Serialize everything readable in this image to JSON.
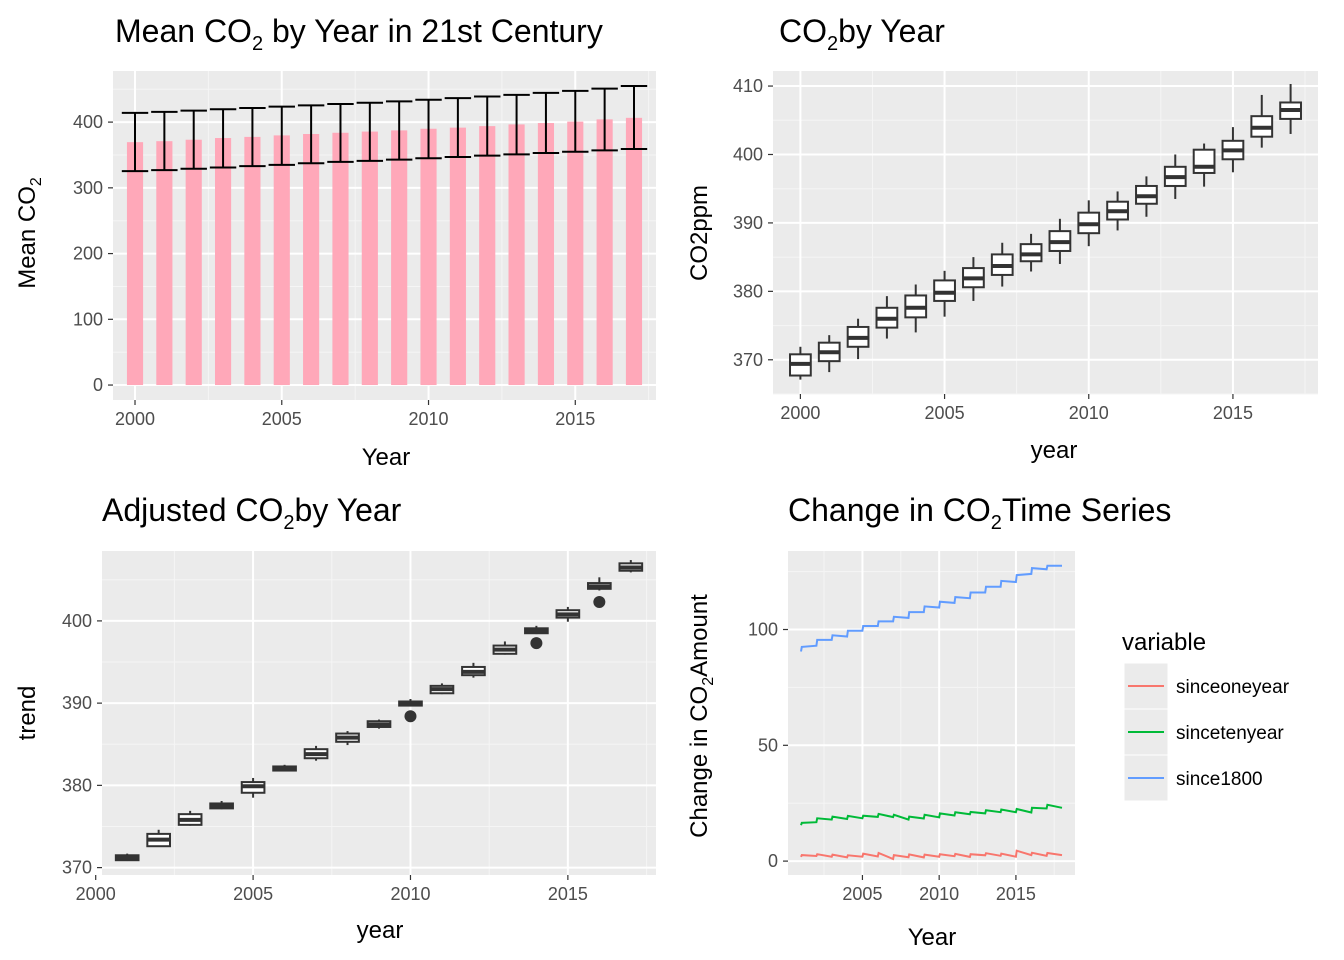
{
  "chart_data": [
    {
      "type": "bar",
      "title": "Mean CO",
      "title_sub": "2",
      "title_rest": " by Year in 21st Century",
      "xlabel": "Year",
      "ylabel": "Mean CO",
      "ylabel_sub": "2",
      "x": [
        2000,
        2001,
        2002,
        2003,
        2004,
        2005,
        2006,
        2007,
        2008,
        2009,
        2010,
        2011,
        2012,
        2013,
        2014,
        2015,
        2016,
        2017
      ],
      "values": [
        369.5,
        371.0,
        373.2,
        375.8,
        377.5,
        379.8,
        381.9,
        383.8,
        385.6,
        387.4,
        389.9,
        391.6,
        393.9,
        396.5,
        398.6,
        400.8,
        404.2,
        406.5
      ],
      "err_low": [
        325.5,
        327.0,
        329.0,
        331.0,
        333.0,
        335.0,
        337.5,
        339.5,
        341.0,
        343.0,
        345.0,
        347.0,
        349.0,
        351.0,
        353.0,
        355.0,
        357.0,
        359.0
      ],
      "err_high": [
        414.0,
        415.5,
        417.5,
        419.5,
        421.5,
        423.5,
        425.5,
        427.5,
        429.5,
        431.5,
        434.0,
        436.5,
        439.0,
        441.5,
        444.5,
        447.5,
        451.0,
        455.0
      ],
      "xticks": [
        2000,
        2005,
        2010,
        2015
      ],
      "yticks": [
        0,
        100,
        200,
        300,
        400
      ],
      "xlim": [
        1999.25,
        2017.75
      ],
      "ylim": [
        -22.75,
        477.75
      ],
      "bar_color": "#ffa8b9",
      "grid": true
    },
    {
      "type": "box",
      "title": "CO",
      "title_sub": "2",
      "title_rest": "by Year",
      "xlabel": "year",
      "ylabel": "CO2ppm",
      "boxes": [
        {
          "x": 2000,
          "lw": 367.1,
          "q1": 367.7,
          "med": 369.4,
          "q3": 370.8,
          "uw": 371.9
        },
        {
          "x": 2001,
          "lw": 368.2,
          "q1": 369.8,
          "med": 371.1,
          "q3": 372.5,
          "uw": 373.6
        },
        {
          "x": 2002,
          "lw": 370.1,
          "q1": 371.9,
          "med": 373.2,
          "q3": 374.8,
          "uw": 376.0
        },
        {
          "x": 2003,
          "lw": 373.1,
          "q1": 374.7,
          "med": 376.0,
          "q3": 377.6,
          "uw": 379.3
        },
        {
          "x": 2004,
          "lw": 374.0,
          "q1": 376.2,
          "med": 377.6,
          "q3": 379.4,
          "uw": 381.0
        },
        {
          "x": 2005,
          "lw": 376.3,
          "q1": 378.6,
          "med": 379.8,
          "q3": 381.6,
          "uw": 383.0
        },
        {
          "x": 2006,
          "lw": 378.6,
          "q1": 380.6,
          "med": 381.9,
          "q3": 383.4,
          "uw": 385.0
        },
        {
          "x": 2007,
          "lw": 380.7,
          "q1": 382.4,
          "med": 383.7,
          "q3": 385.4,
          "uw": 387.1
        },
        {
          "x": 2008,
          "lw": 382.9,
          "q1": 384.4,
          "med": 385.4,
          "q3": 386.9,
          "uw": 388.4
        },
        {
          "x": 2009,
          "lw": 384.0,
          "q1": 385.9,
          "med": 387.2,
          "q3": 388.8,
          "uw": 390.6
        },
        {
          "x": 2010,
          "lw": 386.6,
          "q1": 388.5,
          "med": 389.8,
          "q3": 391.5,
          "uw": 393.3
        },
        {
          "x": 2011,
          "lw": 388.9,
          "q1": 390.5,
          "med": 391.7,
          "q3": 393.1,
          "uw": 394.6
        },
        {
          "x": 2012,
          "lw": 390.9,
          "q1": 392.8,
          "med": 393.9,
          "q3": 395.4,
          "uw": 396.8
        },
        {
          "x": 2013,
          "lw": 393.5,
          "q1": 395.4,
          "med": 396.7,
          "q3": 398.2,
          "uw": 400.0
        },
        {
          "x": 2014,
          "lw": 395.3,
          "q1": 397.3,
          "med": 398.2,
          "q3": 400.7,
          "uw": 401.6
        },
        {
          "x": 2015,
          "lw": 397.4,
          "q1": 399.3,
          "med": 400.6,
          "q3": 402.0,
          "uw": 404.0
        },
        {
          "x": 2016,
          "lw": 401.0,
          "q1": 402.6,
          "med": 403.9,
          "q3": 405.6,
          "uw": 408.7
        },
        {
          "x": 2017,
          "lw": 403.0,
          "q1": 405.2,
          "med": 406.5,
          "q3": 407.6,
          "uw": 410.3
        }
      ],
      "xticks": [
        2000,
        2005,
        2010,
        2015
      ],
      "yticks": [
        370,
        380,
        390,
        400,
        410
      ],
      "xlim": [
        1999.05,
        2017.95
      ],
      "ylim": [
        365.0,
        412.2
      ],
      "grid": true
    },
    {
      "type": "box",
      "title": "Adjusted CO",
      "title_sub": "2",
      "title_rest": "by Year",
      "xlabel": "year",
      "ylabel": "trend",
      "boxes": [
        {
          "x": 2001,
          "lw": 370.8,
          "q1": 370.9,
          "med": 371.2,
          "q3": 371.5,
          "uw": 371.7
        },
        {
          "x": 2002,
          "lw": 372.6,
          "q1": 372.6,
          "med": 373.4,
          "q3": 374.1,
          "uw": 374.6
        },
        {
          "x": 2003,
          "lw": 375.1,
          "q1": 375.2,
          "med": 375.8,
          "q3": 376.5,
          "uw": 376.9
        },
        {
          "x": 2004,
          "lw": 377.1,
          "q1": 377.2,
          "med": 377.5,
          "q3": 377.8,
          "uw": 378.1
        },
        {
          "x": 2005,
          "lw": 378.5,
          "q1": 379.1,
          "med": 379.9,
          "q3": 380.4,
          "uw": 380.9
        },
        {
          "x": 2006,
          "lw": 381.7,
          "q1": 381.8,
          "med": 382.0,
          "q3": 382.3,
          "uw": 382.5
        },
        {
          "x": 2007,
          "lw": 383.0,
          "q1": 383.3,
          "med": 383.8,
          "q3": 384.4,
          "uw": 384.8
        },
        {
          "x": 2008,
          "lw": 384.9,
          "q1": 385.3,
          "med": 385.8,
          "q3": 386.3,
          "uw": 386.6
        },
        {
          "x": 2009,
          "lw": 386.9,
          "q1": 387.1,
          "med": 387.4,
          "q3": 387.8,
          "uw": 388.0
        },
        {
          "x": 2010,
          "lw": 389.6,
          "q1": 389.7,
          "med": 389.9,
          "q3": 390.2,
          "uw": 390.5,
          "out": [
            388.4
          ]
        },
        {
          "x": 2011,
          "lw": 391.1,
          "q1": 391.2,
          "med": 391.7,
          "q3": 392.1,
          "uw": 392.4
        },
        {
          "x": 2012,
          "lw": 393.1,
          "q1": 393.4,
          "med": 393.8,
          "q3": 394.4,
          "uw": 394.9
        },
        {
          "x": 2013,
          "lw": 395.9,
          "q1": 396.0,
          "med": 396.5,
          "q3": 397.0,
          "uw": 397.5
        },
        {
          "x": 2014,
          "lw": 398.4,
          "q1": 398.5,
          "med": 398.8,
          "q3": 399.1,
          "uw": 399.4,
          "out": [
            397.3
          ]
        },
        {
          "x": 2015,
          "lw": 399.9,
          "q1": 400.4,
          "med": 400.8,
          "q3": 401.3,
          "uw": 401.7
        },
        {
          "x": 2016,
          "lw": 403.7,
          "q1": 403.9,
          "med": 404.2,
          "q3": 404.6,
          "uw": 405.3,
          "out": [
            402.3
          ]
        },
        {
          "x": 2017,
          "lw": 405.9,
          "q1": 406.1,
          "med": 406.5,
          "q3": 407.0,
          "uw": 407.4
        }
      ],
      "xticks": [
        2000,
        2005,
        2010,
        2015
      ],
      "yticks": [
        370,
        380,
        390,
        400
      ],
      "xlim": [
        2000.2,
        2017.8
      ],
      "ylim": [
        369.1,
        408.5
      ],
      "grid": true
    },
    {
      "type": "line",
      "title": "Change in CO",
      "title_sub": "2",
      "title_rest": "Time Series",
      "xlabel": "Year",
      "ylabel": "Change in CO",
      "ylabel_sub": "2",
      "ylabel_rest": "Amount",
      "legend_title": "variable",
      "legend_position": "right",
      "series": [
        {
          "name": "sinceoneyear",
          "color": "#f8766d",
          "x": [
            2001,
            2001.05,
            2002,
            2002.05,
            2003,
            2003.05,
            2004,
            2004.05,
            2005,
            2005.05,
            2006,
            2006.05,
            2007,
            2007.05,
            2008,
            2008.05,
            2009,
            2009.05,
            2010,
            2010.05,
            2011,
            2011.05,
            2012,
            2012.05,
            2013,
            2013.05,
            2014,
            2014.05,
            2015,
            2015.05,
            2016,
            2016.05,
            2017,
            2017.05,
            2018
          ],
          "y": [
            1.8,
            2.6,
            2.2,
            3.0,
            1.9,
            2.8,
            1.6,
            2.5,
            1.9,
            3.2,
            2.0,
            3.5,
            0.9,
            2.6,
            1.7,
            2.9,
            1.6,
            2.8,
            1.9,
            3.0,
            2.1,
            3.1,
            1.8,
            3.0,
            2.5,
            3.4,
            2.3,
            3.2,
            1.9,
            4.5,
            2.6,
            3.6,
            2.3,
            3.5,
            2.6
          ]
        },
        {
          "name": "sincetenyear",
          "color": "#00ba38",
          "x": [
            2001,
            2001.05,
            2002,
            2002.05,
            2003,
            2003.05,
            2004,
            2004.05,
            2005,
            2005.05,
            2006,
            2006.05,
            2007,
            2007.05,
            2008,
            2008.05,
            2009,
            2009.05,
            2010,
            2010.05,
            2011,
            2011.05,
            2012,
            2012.05,
            2013,
            2013.05,
            2014,
            2014.05,
            2015,
            2015.05,
            2016,
            2016.05,
            2017,
            2017.05,
            2018
          ],
          "y": [
            15.5,
            16.5,
            16.8,
            18.5,
            17.9,
            19.2,
            18.2,
            19.5,
            18.5,
            19.6,
            19.1,
            20.4,
            19.0,
            20.0,
            17.9,
            19.2,
            18.4,
            20.0,
            18.9,
            20.6,
            19.7,
            21.1,
            20.2,
            21.2,
            20.6,
            22.0,
            21.1,
            22.3,
            21.1,
            22.5,
            21.0,
            23.0,
            22.7,
            24.3,
            23.0
          ]
        },
        {
          "name": "since1800",
          "color": "#619cff",
          "x": [
            2001,
            2001.05,
            2002,
            2002.05,
            2003,
            2003.05,
            2004,
            2004.05,
            2005,
            2005.05,
            2006,
            2006.05,
            2007,
            2007.05,
            2008,
            2008.05,
            2009,
            2009.05,
            2010,
            2010.05,
            2011,
            2011.05,
            2012,
            2012.05,
            2013,
            2013.05,
            2014,
            2014.05,
            2015,
            2015.05,
            2016,
            2016.05,
            2017,
            2017.05,
            2018
          ],
          "y": [
            90.5,
            92.5,
            93.0,
            95.5,
            95.5,
            97.5,
            97.0,
            99.5,
            99.5,
            101.5,
            101.5,
            103.5,
            103.5,
            105.5,
            105.0,
            107.5,
            107.5,
            110.0,
            109.5,
            112.0,
            111.5,
            114.0,
            113.5,
            116.0,
            116.0,
            118.5,
            118.5,
            121.0,
            120.5,
            123.5,
            124.0,
            126.5,
            126.0,
            127.5,
            127.5
          ]
        }
      ],
      "xticks": [
        2005,
        2010,
        2015
      ],
      "yticks": [
        0,
        50,
        100
      ],
      "xlim": [
        2000.15,
        2018.85
      ],
      "ylim": [
        -6.0,
        133.9
      ],
      "grid": true
    }
  ]
}
